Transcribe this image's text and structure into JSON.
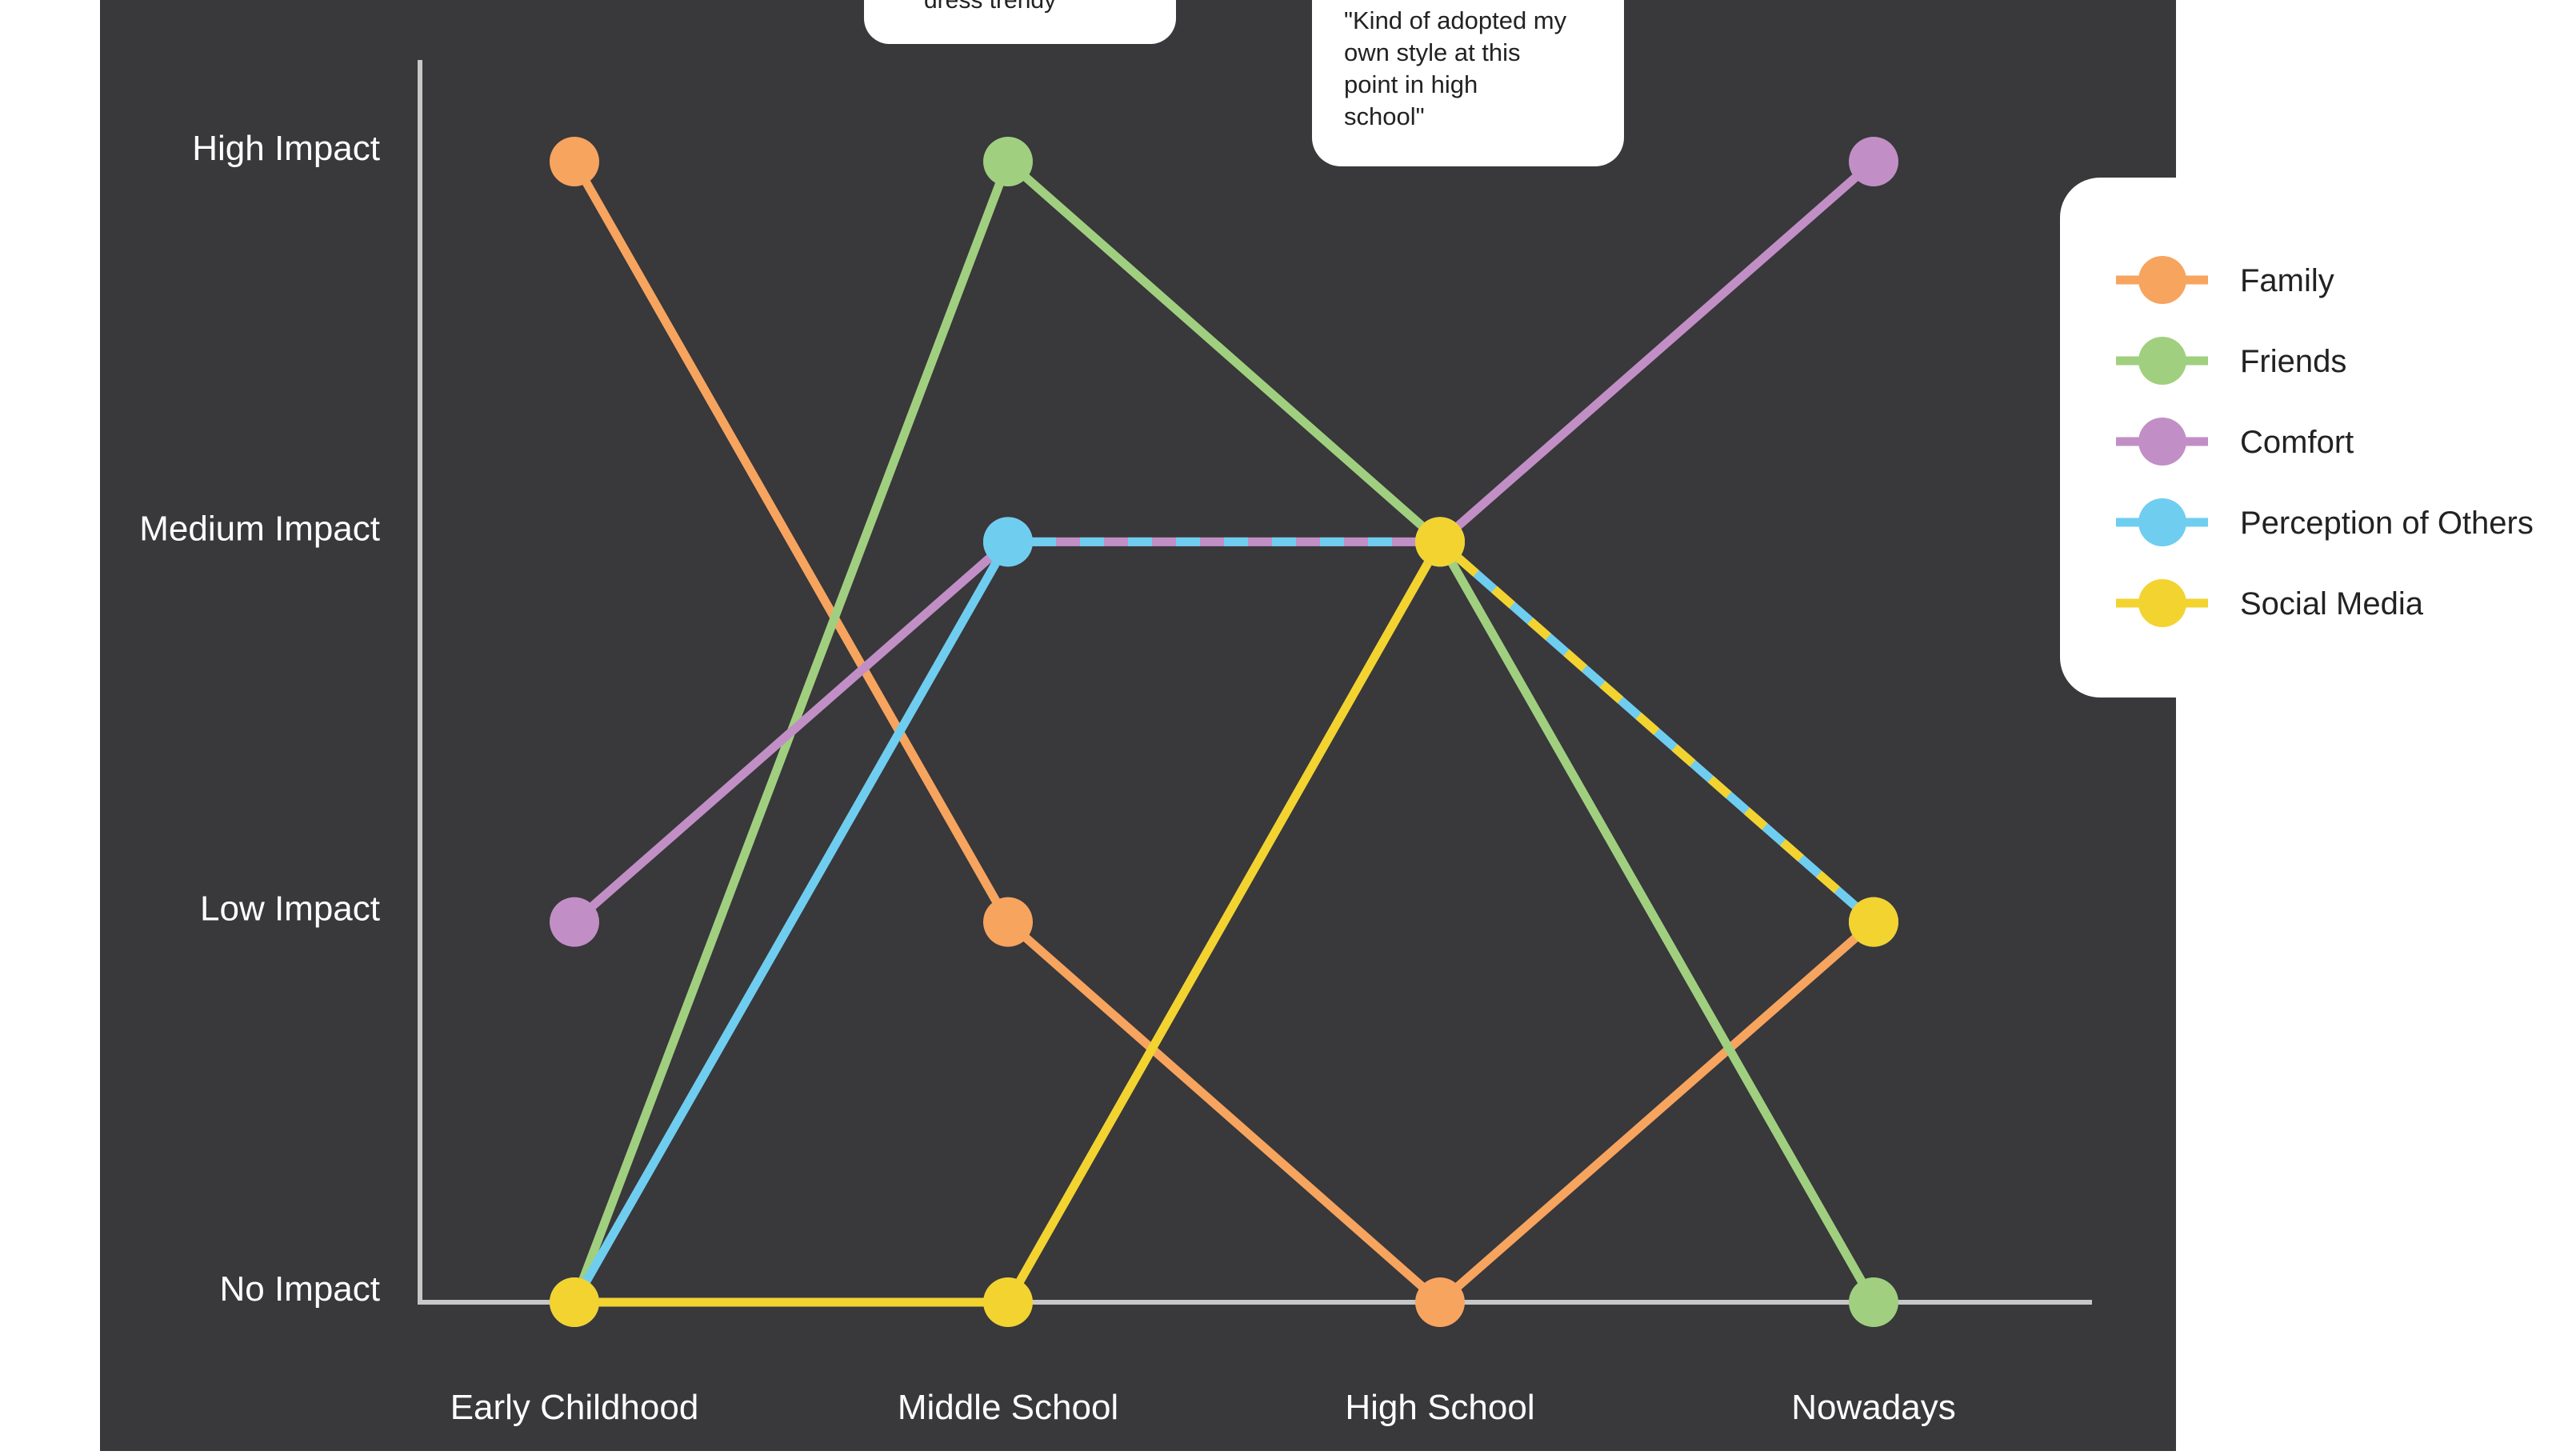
{
  "chart_data": {
    "type": "line",
    "title": "",
    "xlabel": "",
    "ylabel": "",
    "categories": [
      "Early Childhood",
      "Middle School",
      "High School",
      "Nowadays"
    ],
    "y_levels": [
      "No Impact",
      "Low Impact",
      "Medium Impact",
      "High Impact"
    ],
    "ylim": [
      0,
      3
    ],
    "grid": false,
    "legend_position": "right",
    "series": [
      {
        "name": "Family",
        "color": "#F7A45F",
        "values": [
          3,
          1,
          0,
          1
        ]
      },
      {
        "name": "Friends",
        "color": "#A0D07F",
        "values": [
          0,
          3,
          2,
          0
        ]
      },
      {
        "name": "Comfort",
        "color": "#C18FC6",
        "values": [
          1,
          2,
          2,
          3
        ]
      },
      {
        "name": "Perception of Others",
        "color": "#6FCDF0",
        "values": [
          0,
          2,
          2,
          1
        ]
      },
      {
        "name": "Social Media",
        "color": "#F3D330",
        "values": [
          0,
          0,
          2,
          1
        ]
      }
    ],
    "shared_segments": [
      {
        "from": 1,
        "to": 2,
        "series": [
          "Comfort",
          "Perception of Others"
        ]
      },
      {
        "from": 2,
        "to": 3,
        "series": [
          "Perception of Others",
          "Social Media"
        ]
      },
      {
        "from": 0,
        "to": 1,
        "series": [
          "Social Media"
        ]
      }
    ],
    "annotations": [
      {
        "text": "dress trendy"
      },
      {
        "text": "\"Kind of adopted my own style at this point in high school\"",
        "lines": [
          "\"Kind of adopted my",
          "own style at this",
          "point in high",
          "school\""
        ]
      }
    ]
  },
  "colors": {
    "panel_background": "#39383B",
    "axis": "#C7C7C7",
    "text_on_dark": "#FFFFFF",
    "callout_fill": "#FFFFFF",
    "callout_text": "#222222"
  }
}
